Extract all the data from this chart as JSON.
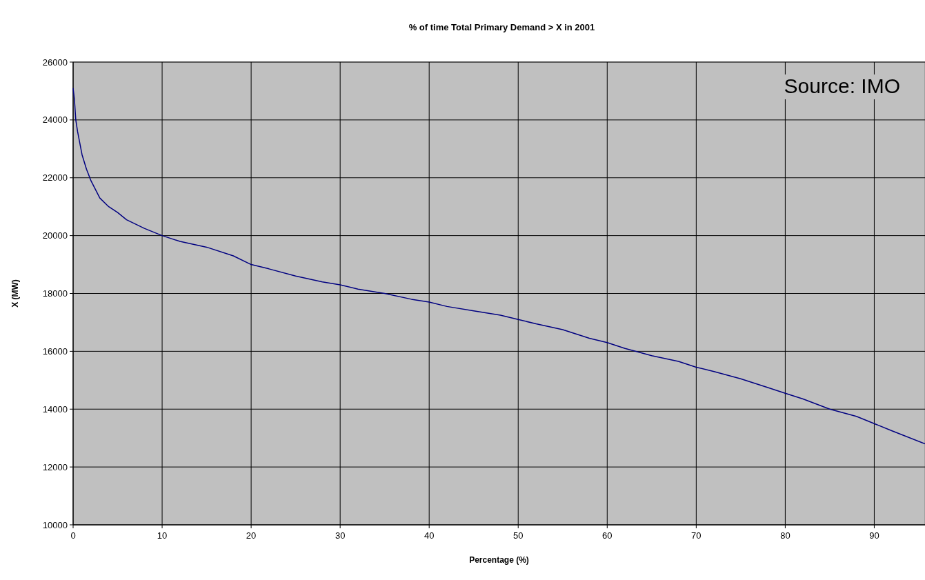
{
  "chart_data": {
    "type": "line",
    "title": "% of time Total Primary Demand > X in 2001",
    "xlabel": "Percentage (%)",
    "ylabel": "X (MW)",
    "annotations": [
      "Source: IMO"
    ],
    "x": [
      0,
      0.15,
      0.3,
      0.5,
      1,
      1.5,
      2,
      3,
      4,
      5,
      6,
      7,
      8,
      10,
      12,
      15,
      18,
      20,
      22,
      25,
      28,
      30,
      32,
      35,
      38,
      40,
      42,
      45,
      48,
      50,
      52,
      55,
      58,
      60,
      62,
      65,
      68,
      70,
      72,
      75,
      78,
      80,
      82,
      85,
      88,
      90,
      92,
      95.7
    ],
    "series": [
      {
        "color": "#000080",
        "values": [
          25100,
          24700,
          24000,
          23600,
          22800,
          22300,
          21900,
          21300,
          21000,
          20800,
          20550,
          20400,
          20250,
          20000,
          19800,
          19600,
          19300,
          19000,
          18850,
          18600,
          18400,
          18300,
          18150,
          18000,
          17800,
          17700,
          17550,
          17400,
          17250,
          17100,
          16950,
          16750,
          16450,
          16300,
          16100,
          15850,
          15650,
          15450,
          15300,
          15050,
          14750,
          14550,
          14350,
          14000,
          13750,
          13500,
          13250,
          12800
        ]
      }
    ],
    "xlim": [
      0,
      95.7
    ],
    "xticks": [
      0,
      10,
      20,
      30,
      40,
      50,
      60,
      70,
      80,
      90
    ],
    "ylim": [
      10000,
      26000
    ],
    "yticks": [
      10000,
      12000,
      14000,
      16000,
      18000,
      20000,
      22000,
      24000,
      26000
    ],
    "grid": true,
    "marker": "none",
    "line_style": "solid"
  }
}
